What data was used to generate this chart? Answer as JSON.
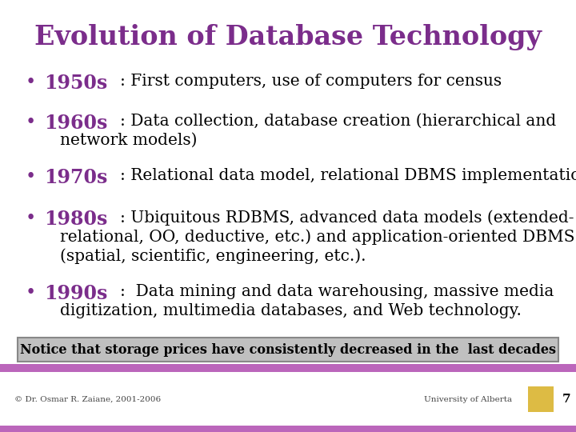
{
  "title": "Evolution of Database Technology",
  "title_color": "#7B2D8B",
  "bg_color": "#FFFFFF",
  "footer_bar_color": "#BB66BB",
  "bullet_color": "#7B2D8B",
  "bullet_decade_color": "#7B2D8B",
  "body_text_color": "#000000",
  "notice_box_bg": "#C0C0C0",
  "notice_box_border": "#888888",
  "notice_text": "Notice that storage prices have consistently decreased in the  last decades",
  "footer_left": "© Dr. Osmar R. Zaiane, 2001-2006",
  "footer_right": "University of Alberta",
  "footer_page": "7",
  "bullets": [
    {
      "decade": "1950s",
      "lines": [
        ": First computers, use of computers for census"
      ]
    },
    {
      "decade": "1960s",
      "lines": [
        ": Data collection, database creation (hierarchical and",
        "network models)"
      ]
    },
    {
      "decade": "1970s",
      "lines": [
        ": Relational data model, relational DBMS implementation."
      ]
    },
    {
      "decade": "1980s",
      "lines": [
        ": Ubiquitous RDBMS, advanced data models (extended-",
        "relational, OO, deductive, etc.) and application-oriented DBMS",
        "(spatial, scientific, engineering, etc.)."
      ]
    },
    {
      "decade": "1990s",
      "lines": [
        ":  Data mining and data warehousing, massive media",
        "digitization, multimedia databases, and Web technology."
      ]
    }
  ]
}
